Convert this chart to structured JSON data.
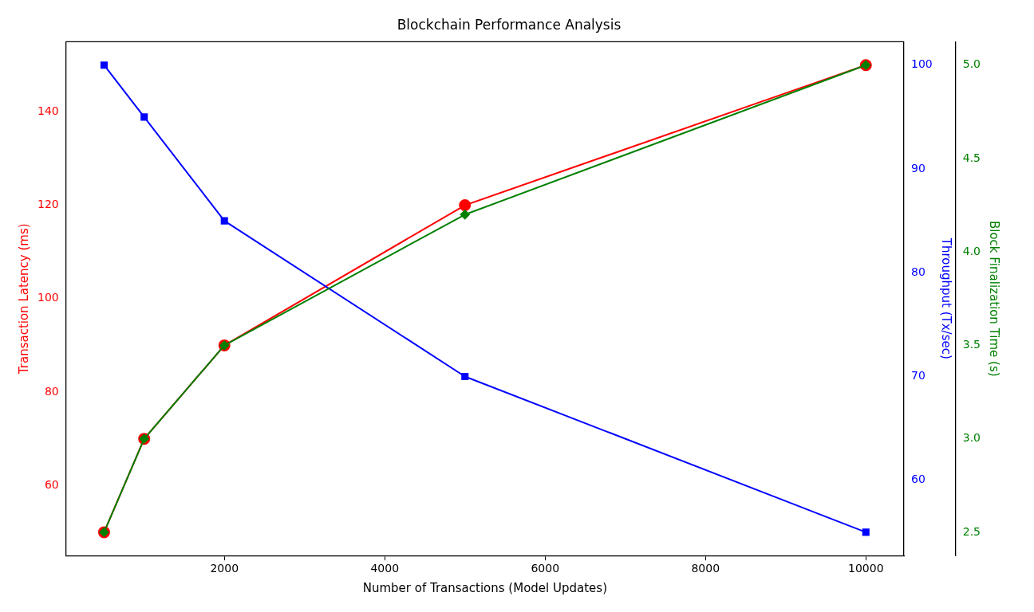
{
  "chart_data": {
    "type": "line",
    "title": "Blockchain Performance Analysis",
    "xlabel": "Number of Transactions (Model Updates)",
    "ylabel": "Transaction Latency (ms)",
    "y2label": "Throughput (Tx/sec)",
    "y3label": "Block Finalization Time (s)",
    "x": [
      500,
      1000,
      2000,
      5000,
      10000
    ],
    "xlim": [
      25,
      10475
    ],
    "xticks": [
      2000,
      4000,
      6000,
      8000,
      10000
    ],
    "ylim": [
      45,
      155
    ],
    "yticks": [
      60,
      80,
      100,
      120,
      140
    ],
    "y2lim": [
      52.75,
      102.25
    ],
    "y2ticks": [
      60,
      70,
      80,
      90,
      100
    ],
    "y3lim": [
      2.375,
      5.125
    ],
    "y3ticks": [
      {
        "value": 2.5,
        "label": "2.5"
      },
      {
        "value": 3,
        "label": "3.0"
      },
      {
        "value": 3.5,
        "label": "3.5"
      },
      {
        "value": 4,
        "label": "4.0"
      },
      {
        "value": 4.5,
        "label": "4.5"
      },
      {
        "value": 5,
        "label": "5.0"
      }
    ],
    "grid": false,
    "legend": false,
    "line_style": "solid",
    "series": [
      {
        "color": "#ff0000",
        "marker": "circle",
        "values": [
          50,
          70,
          90,
          120,
          150
        ]
      },
      {
        "color": "#0000ff",
        "marker": "square",
        "axis": "y2",
        "values": [
          100,
          95,
          85,
          70,
          55
        ]
      },
      {
        "color": "#008000",
        "marker": "diamond",
        "axis": "y3",
        "values": [
          2.5,
          3.0,
          3.5,
          4.2,
          5.0
        ]
      }
    ]
  }
}
